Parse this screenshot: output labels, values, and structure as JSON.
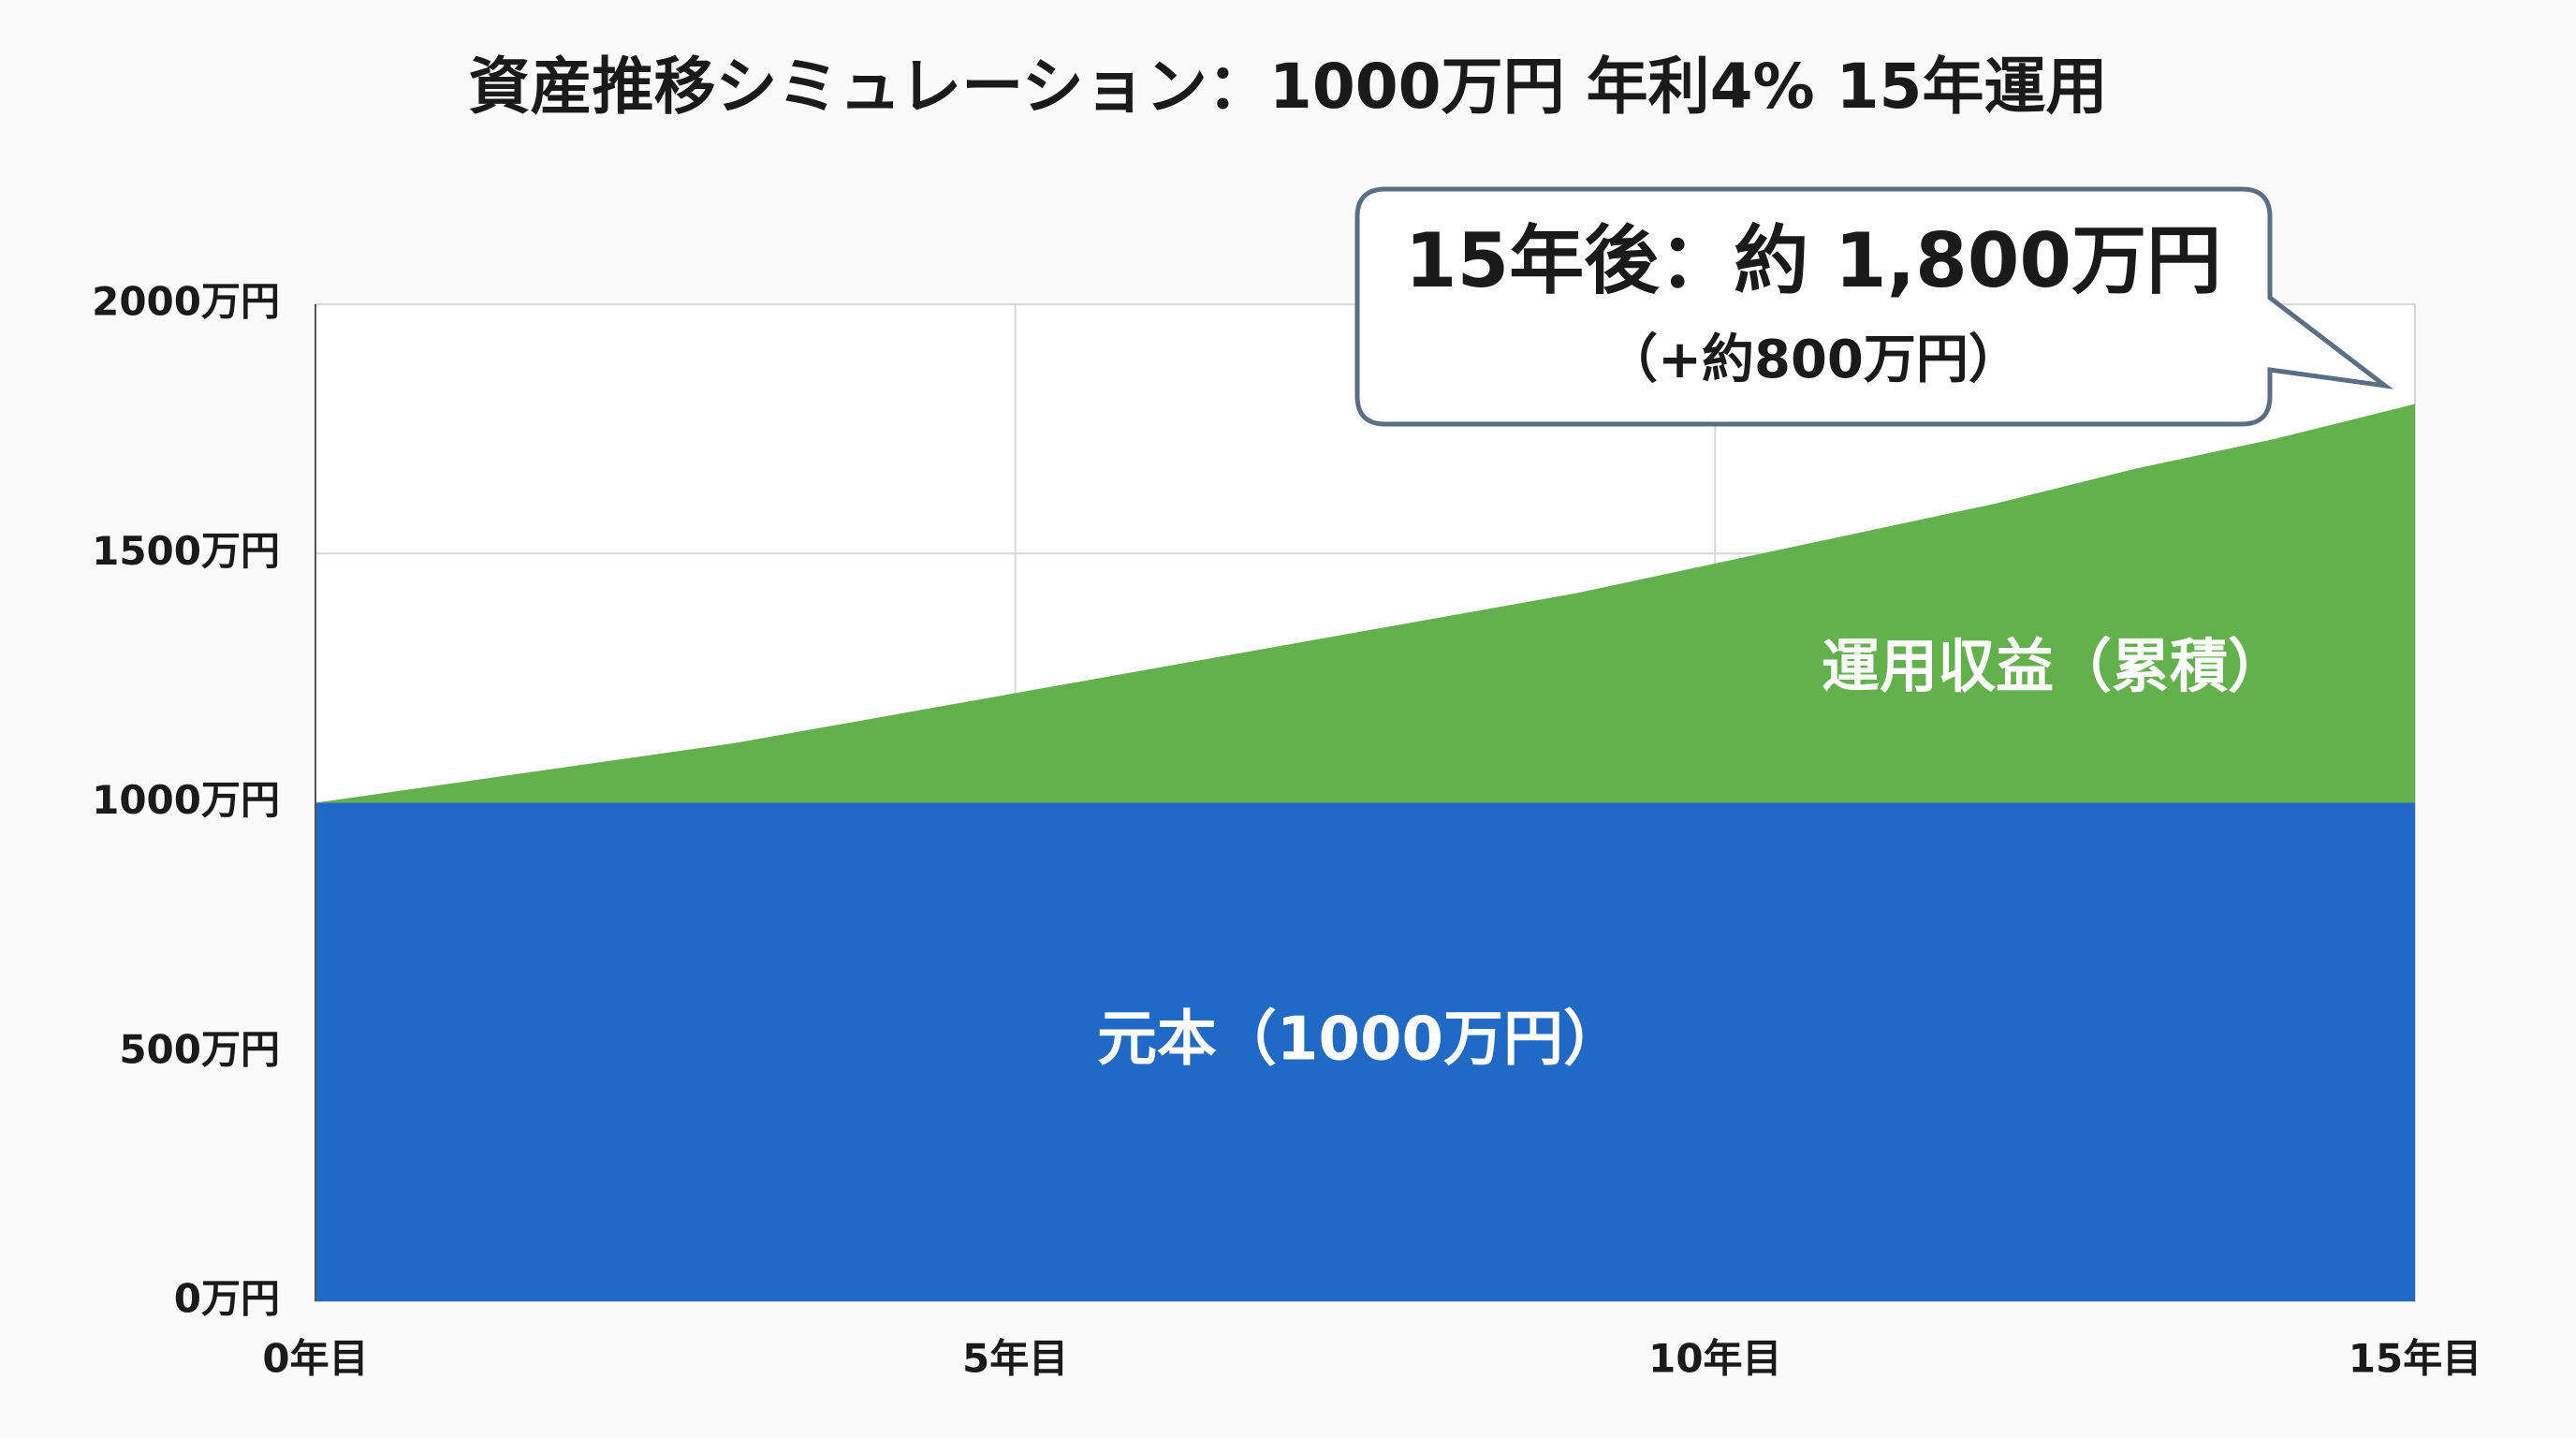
{
  "chart_data": {
    "type": "stacked-area",
    "title": "資産推移シミュレーション：1000万円 年利4% 15年運用",
    "x": [
      0,
      1,
      2,
      3,
      4,
      5,
      6,
      7,
      8,
      9,
      10,
      11,
      12,
      13,
      14,
      15
    ],
    "series": [
      {
        "name": "元本（1000万円）",
        "color": "#2169c6",
        "values": [
          1000,
          1000,
          1000,
          1000,
          1000,
          1000,
          1000,
          1000,
          1000,
          1000,
          1000,
          1000,
          1000,
          1000,
          1000,
          1000
        ]
      },
      {
        "name": "運用収益（累積）",
        "color": "#63b14d",
        "values": [
          0,
          40,
          80,
          120,
          170,
          220,
          270,
          320,
          370,
          420,
          480,
          540,
          600,
          670,
          730,
          800
        ]
      }
    ],
    "xlim": [
      0,
      15
    ],
    "xticks": [
      {
        "value": 0,
        "label": "0年目"
      },
      {
        "value": 5,
        "label": "5年目"
      },
      {
        "value": 10,
        "label": "10年目"
      },
      {
        "value": 15,
        "label": "15年目"
      }
    ],
    "ylim": [
      0,
      2000
    ],
    "yticks": [
      {
        "value": 0,
        "label": "0万円"
      },
      {
        "value": 500,
        "label": "500万円"
      },
      {
        "value": 1000,
        "label": "1000万円"
      },
      {
        "value": 1500,
        "label": "1500万円"
      },
      {
        "value": 2000,
        "label": "2000万円"
      }
    ],
    "grid": true,
    "annotation": {
      "title": "15年後：約 1,800万円",
      "subtitle": "（+約800万円）"
    }
  }
}
